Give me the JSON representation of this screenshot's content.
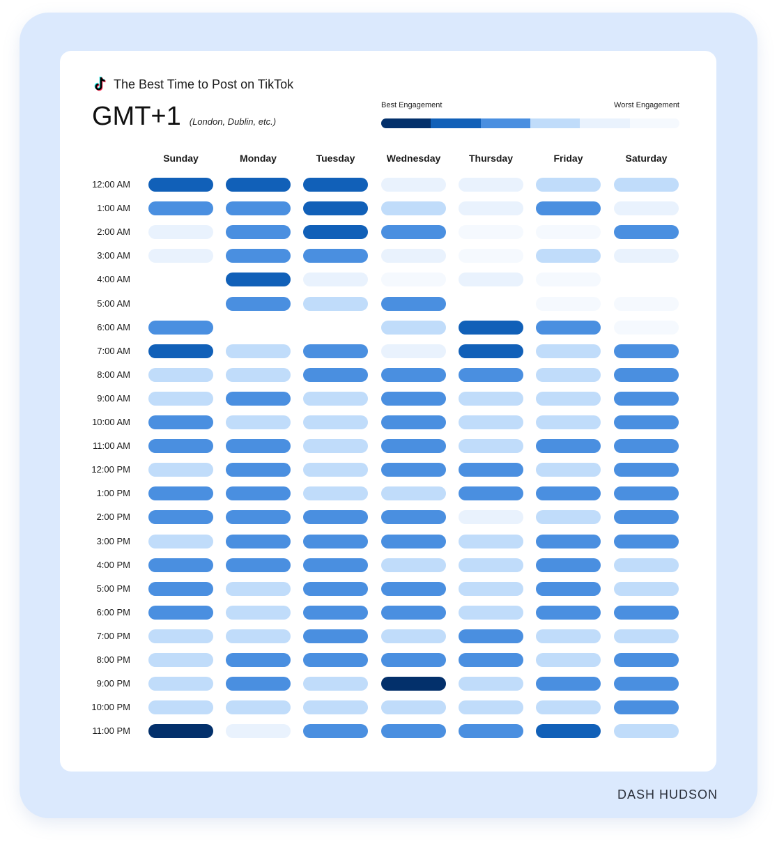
{
  "header": {
    "title": "The Best Time to Post on TikTok",
    "timezone": "GMT+1",
    "timezone_note": "(London, Dublin, etc.)",
    "logo_icon": "tiktok-icon"
  },
  "legend": {
    "best_label": "Best Engagement",
    "worst_label": "Worst Engagement",
    "colors": [
      "#03306b",
      "#1160b8",
      "#4a8fe0",
      "#c0dcfa",
      "#e9f2fd",
      "#f5f9fe"
    ]
  },
  "footer": {
    "brand_part1": "DASH",
    "brand_part2": "HUDSON"
  },
  "chart_data": {
    "type": "heatmap",
    "title": "The Best Time to Post on TikTok",
    "x_categories": [
      "Sunday",
      "Monday",
      "Tuesday",
      "Wednesday",
      "Thursday",
      "Friday",
      "Saturday"
    ],
    "y_categories": [
      "12:00 AM",
      "1:00 AM",
      "2:00 AM",
      "3:00 AM",
      "4:00 AM",
      "5:00 AM",
      "6:00 AM",
      "7:00 AM",
      "8:00 AM",
      "9:00 AM",
      "10:00 AM",
      "11:00 AM",
      "12:00 PM",
      "1:00 PM",
      "2:00 PM",
      "3:00 PM",
      "4:00 PM",
      "5:00 PM",
      "6:00 PM",
      "7:00 PM",
      "8:00 PM",
      "9:00 PM",
      "10:00 PM",
      "11:00 PM"
    ],
    "scale": "engagement level 1 (best) to 6 (worst); 0 = no data",
    "values": [
      [
        2,
        2,
        2,
        5,
        5,
        4,
        4
      ],
      [
        3,
        3,
        2,
        4,
        5,
        3,
        5
      ],
      [
        5,
        3,
        2,
        3,
        6,
        6,
        3
      ],
      [
        5,
        3,
        3,
        5,
        6,
        4,
        5
      ],
      [
        0,
        2,
        5,
        6,
        5,
        6,
        0
      ],
      [
        0,
        3,
        4,
        3,
        0,
        6,
        6
      ],
      [
        3,
        0,
        0,
        4,
        2,
        3,
        6
      ],
      [
        2,
        4,
        3,
        5,
        2,
        4,
        3
      ],
      [
        4,
        4,
        3,
        3,
        3,
        4,
        3
      ],
      [
        4,
        3,
        4,
        3,
        4,
        4,
        3
      ],
      [
        3,
        4,
        4,
        3,
        4,
        4,
        3
      ],
      [
        3,
        3,
        4,
        3,
        4,
        3,
        3
      ],
      [
        4,
        3,
        4,
        3,
        3,
        4,
        3
      ],
      [
        3,
        3,
        4,
        4,
        3,
        3,
        3
      ],
      [
        3,
        3,
        3,
        3,
        5,
        4,
        3
      ],
      [
        4,
        3,
        3,
        3,
        4,
        3,
        3
      ],
      [
        3,
        3,
        3,
        4,
        4,
        3,
        4
      ],
      [
        3,
        4,
        3,
        3,
        4,
        3,
        4
      ],
      [
        3,
        4,
        3,
        3,
        4,
        3,
        3
      ],
      [
        4,
        4,
        3,
        4,
        3,
        4,
        4
      ],
      [
        4,
        3,
        3,
        3,
        3,
        4,
        3
      ],
      [
        4,
        3,
        4,
        1,
        4,
        3,
        3
      ],
      [
        4,
        4,
        4,
        4,
        4,
        4,
        3
      ],
      [
        1,
        5,
        3,
        3,
        3,
        2,
        4
      ]
    ]
  }
}
